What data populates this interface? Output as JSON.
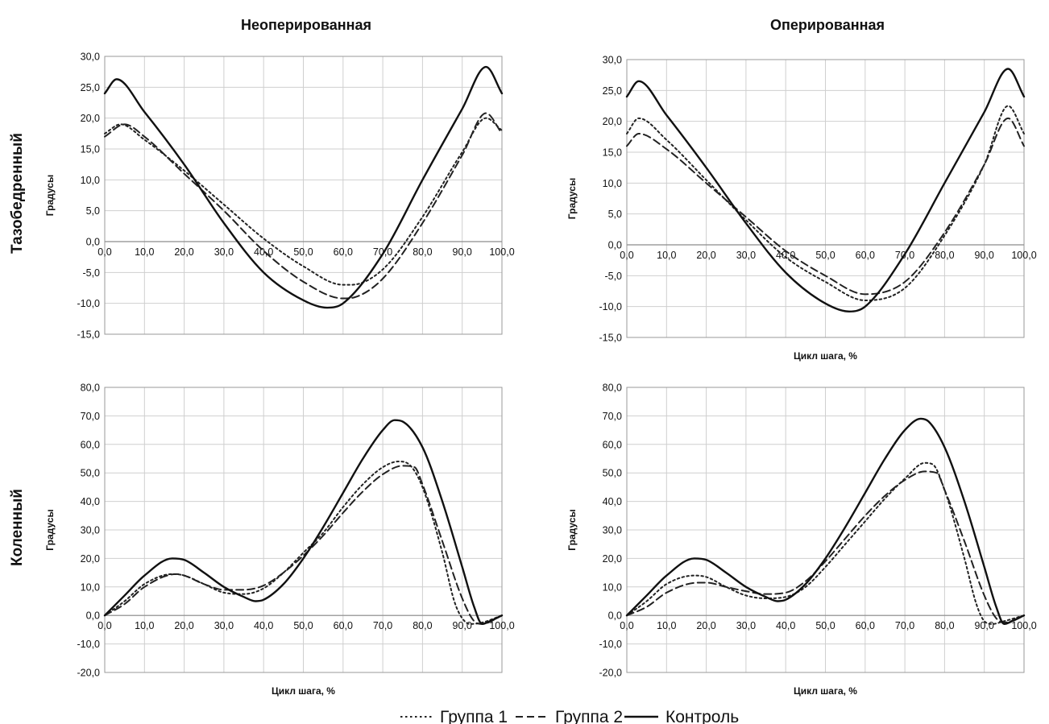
{
  "legend": [
    {
      "name": "Группа 1",
      "dash": "2.5 3.5",
      "width": 2.0,
      "color": "#222222"
    },
    {
      "name": "Группа 2",
      "dash": "9 5",
      "width": 2.0,
      "color": "#222222"
    },
    {
      "name": "Контроль",
      "dash": "",
      "width": 2.4,
      "color": "#111111"
    }
  ],
  "columns": [
    "Неоперированная",
    "Оперированная"
  ],
  "rows": [
    "Тазобедренный",
    "Коленный"
  ],
  "chart_data": [
    {
      "type": "line",
      "id": "hip-nonop",
      "column": "Неоперированная",
      "row": "Тазобедренный",
      "ylabel": "Градусы",
      "xlabel": "",
      "xlim": [
        0,
        100
      ],
      "ylim": [
        -15,
        30
      ],
      "yticks": [
        "30,0",
        "25,0",
        "20,0",
        "15,0",
        "10,0",
        "5,0",
        "0,0",
        "-5,0",
        "-10,0",
        "-15,0"
      ],
      "xticks": [
        "0,0",
        "10,0",
        "20,0",
        "30,0",
        "40,0",
        "50,0",
        "60,0",
        "70,0",
        "80,0",
        "90,0",
        "100,0"
      ],
      "series": [
        {
          "name": "Группа 1",
          "x": [
            0,
            4,
            10,
            20,
            30,
            40,
            50,
            60,
            62,
            70,
            80,
            90,
            96,
            100
          ],
          "y": [
            17.5,
            19,
            16.5,
            11.5,
            6,
            0.5,
            -4,
            -7,
            -7,
            -4.5,
            4,
            14.5,
            20,
            18
          ]
        },
        {
          "name": "Группа 2",
          "x": [
            0,
            5,
            10,
            20,
            30,
            40,
            50,
            60,
            63,
            70,
            80,
            90,
            96,
            100
          ],
          "y": [
            17,
            19,
            17,
            11,
            5,
            -1.5,
            -6.5,
            -9.2,
            -9,
            -6,
            3,
            14,
            20.8,
            17.5
          ]
        },
        {
          "name": "Контроль",
          "x": [
            0,
            3,
            10,
            20,
            30,
            40,
            50,
            56,
            60,
            70,
            80,
            90,
            96,
            100
          ],
          "y": [
            24,
            26.3,
            21,
            12.5,
            3,
            -5,
            -9.5,
            -10.7,
            -10,
            -2,
            10,
            21.5,
            28.3,
            24
          ]
        }
      ]
    },
    {
      "type": "line",
      "id": "hip-op",
      "column": "Оперированная",
      "row": "Тазобедренный",
      "ylabel": "Градусы",
      "xlabel": "Цикл шага, %",
      "xlim": [
        0,
        100
      ],
      "ylim": [
        -15,
        30
      ],
      "yticks": [
        "30,0",
        "25,0",
        "20,0",
        "15,0",
        "10,0",
        "5,0",
        "0,0",
        "-5,0",
        "-10,0",
        "-15,0"
      ],
      "xticks": [
        "0,0",
        "10,0",
        "20,0",
        "30,0",
        "40,0",
        "50,0",
        "60,0",
        "70,0",
        "80,0",
        "90,0",
        "100,0"
      ],
      "series": [
        {
          "name": "Группа 1",
          "x": [
            0,
            3,
            10,
            20,
            30,
            40,
            50,
            60,
            70,
            80,
            90,
            96,
            100
          ],
          "y": [
            18,
            20.5,
            17,
            10.5,
            4,
            -2,
            -6,
            -9,
            -7,
            1.5,
            13,
            22.5,
            18
          ]
        },
        {
          "name": "Группа 2",
          "x": [
            0,
            3,
            10,
            20,
            30,
            40,
            50,
            60,
            70,
            80,
            90,
            96,
            100
          ],
          "y": [
            16,
            18,
            15.5,
            10,
            4.5,
            -1,
            -5,
            -8,
            -6,
            2,
            13,
            20.5,
            16
          ]
        },
        {
          "name": "Контроль",
          "x": [
            0,
            3,
            10,
            20,
            30,
            40,
            50,
            56,
            60,
            70,
            80,
            90,
            96,
            100
          ],
          "y": [
            24,
            26.5,
            21,
            12.5,
            3.5,
            -4.5,
            -9.5,
            -10.8,
            -10,
            -1.5,
            10,
            21.5,
            28.5,
            24
          ]
        }
      ]
    },
    {
      "type": "line",
      "id": "knee-nonop",
      "column": "Неоперированная",
      "row": "Коленный",
      "ylabel": "Градусы",
      "xlabel": "Цикл шага, %",
      "xlim": [
        0,
        100
      ],
      "ylim": [
        -20,
        80
      ],
      "yticks": [
        "80,0",
        "70,0",
        "60,0",
        "50,0",
        "40,0",
        "30,0",
        "20,0",
        "10,0",
        "0,0",
        "-10,0",
        "-20,0"
      ],
      "xticks": [
        "0,0",
        "10,0",
        "20,0",
        "30,0",
        "40,0",
        "50,0",
        "60,0",
        "70,0",
        "80,0",
        "90,0",
        "100,0"
      ],
      "series": [
        {
          "name": "Группа 1",
          "x": [
            0,
            5,
            10,
            17,
            20,
            25,
            30,
            35,
            40,
            45,
            50,
            55,
            60,
            65,
            70,
            74,
            77,
            80,
            85,
            88,
            90,
            92,
            95,
            100
          ],
          "y": [
            0,
            5,
            11,
            14.5,
            14,
            11,
            8,
            7.5,
            9.5,
            15,
            22,
            29,
            38,
            46,
            52,
            54,
            52.5,
            45,
            22,
            5,
            -1,
            -3,
            -2.5,
            0
          ]
        },
        {
          "name": "Группа 2",
          "x": [
            0,
            5,
            10,
            18,
            20,
            25,
            30,
            35,
            40,
            45,
            50,
            55,
            60,
            65,
            70,
            75,
            78,
            80,
            85,
            90,
            93,
            95,
            100
          ],
          "y": [
            0,
            4,
            10,
            14.5,
            14,
            11,
            9,
            9,
            10.5,
            15,
            21,
            28,
            36,
            43.5,
            49.5,
            52.5,
            52,
            46,
            26,
            6,
            -2,
            -3,
            0
          ]
        },
        {
          "name": "Контроль",
          "x": [
            0,
            5,
            10,
            17,
            20,
            25,
            30,
            35,
            38,
            40,
            45,
            50,
            55,
            60,
            65,
            70,
            73,
            75,
            80,
            85,
            90,
            93,
            95,
            97,
            100
          ],
          "y": [
            0,
            7,
            14,
            20,
            19.5,
            15,
            10,
            6.5,
            5,
            5.5,
            11,
            20,
            31,
            43,
            55,
            65,
            68.5,
            68,
            59,
            40,
            17,
            3,
            -3,
            -2,
            0
          ]
        }
      ]
    },
    {
      "type": "line",
      "id": "knee-op",
      "column": "Оперированная",
      "row": "Коленный",
      "ylabel": "Градусы",
      "xlabel": "Цикл шага, %",
      "xlim": [
        0,
        100
      ],
      "ylim": [
        -20,
        80
      ],
      "yticks": [
        "80,0",
        "70,0",
        "60,0",
        "50,0",
        "40,0",
        "30,0",
        "20,0",
        "10,0",
        "0,0",
        "-10,0",
        "-20,0"
      ],
      "xticks": [
        "0,0",
        "10,0",
        "20,0",
        "30,0",
        "40,0",
        "50,0",
        "60,0",
        "70,0",
        "80,0",
        "90,0",
        "100,0"
      ],
      "series": [
        {
          "name": "Группа 1",
          "x": [
            0,
            5,
            10,
            17,
            20,
            25,
            30,
            35,
            40,
            45,
            50,
            55,
            60,
            65,
            70,
            75,
            77,
            80,
            85,
            88,
            90,
            92,
            95,
            100
          ],
          "y": [
            0,
            5,
            11,
            14,
            13.5,
            10,
            7,
            6,
            6.5,
            10,
            17,
            25,
            33,
            41,
            48,
            53.5,
            53,
            44,
            20,
            4,
            -2,
            -3,
            -2,
            0
          ]
        },
        {
          "name": "Группа 2",
          "x": [
            0,
            5,
            10,
            18,
            20,
            25,
            30,
            35,
            40,
            45,
            50,
            55,
            60,
            65,
            70,
            75,
            78,
            80,
            85,
            90,
            93,
            95,
            100
          ],
          "y": [
            0,
            3,
            8,
            11.5,
            11.5,
            10,
            8.5,
            7.5,
            8,
            12,
            19,
            27,
            35,
            42,
            47.5,
            50.5,
            50,
            44,
            26,
            7,
            -1,
            -2.5,
            0
          ]
        },
        {
          "name": "Контроль",
          "x": [
            0,
            5,
            10,
            17,
            20,
            25,
            30,
            35,
            38,
            40,
            45,
            50,
            55,
            60,
            65,
            70,
            74,
            76,
            80,
            85,
            90,
            93,
            95,
            97,
            100
          ],
          "y": [
            0,
            7,
            14,
            20,
            19.5,
            15,
            10,
            6.5,
            5,
            5.5,
            11,
            20,
            31,
            43,
            55,
            65,
            69,
            68,
            59,
            40,
            17,
            3,
            -3,
            -2,
            0
          ]
        }
      ]
    }
  ]
}
